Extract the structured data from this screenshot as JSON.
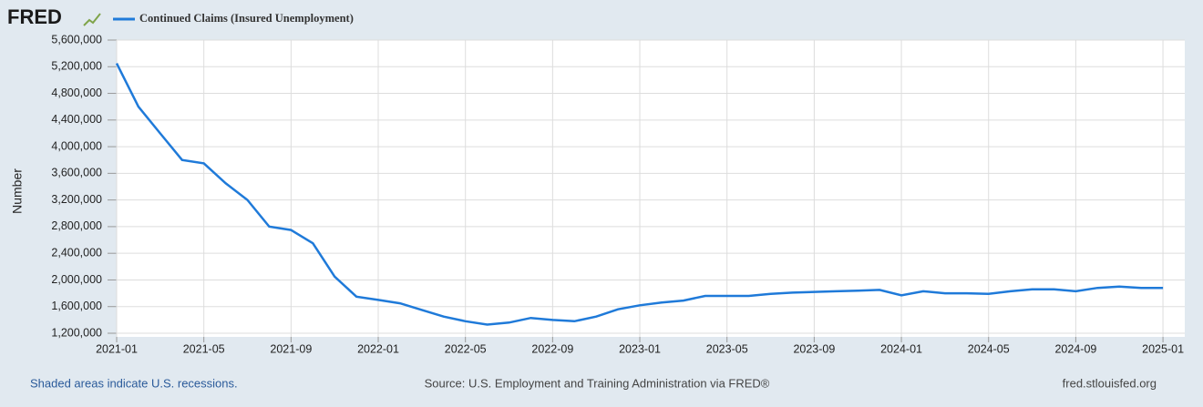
{
  "logo": "FRED",
  "footer": {
    "note": "Shaded areas indicate U.S. recessions.",
    "source": "Source: U.S. Employment and Training Administration via FRED®",
    "site": "fred.stlouisfed.org"
  },
  "chart_data": {
    "type": "line",
    "y_label": "Number",
    "x": [
      "2021-01",
      "2021-02",
      "2021-03",
      "2021-04",
      "2021-05",
      "2021-06",
      "2021-07",
      "2021-08",
      "2021-09",
      "2021-10",
      "2021-11",
      "2021-12",
      "2022-01",
      "2022-02",
      "2022-03",
      "2022-04",
      "2022-05",
      "2022-06",
      "2022-07",
      "2022-08",
      "2022-09",
      "2022-10",
      "2022-11",
      "2022-12",
      "2023-01",
      "2023-02",
      "2023-03",
      "2023-04",
      "2023-05",
      "2023-06",
      "2023-07",
      "2023-08",
      "2023-09",
      "2023-10",
      "2023-11",
      "2023-12",
      "2024-01",
      "2024-02",
      "2024-03",
      "2024-04",
      "2024-05",
      "2024-06",
      "2024-07",
      "2024-08",
      "2024-09",
      "2024-10",
      "2024-11",
      "2024-12",
      "2025-01"
    ],
    "series": [
      {
        "name": "Continued Claims (Insured Unemployment)",
        "color": "#1f7ad9",
        "values": [
          5250000,
          4600000,
          4200000,
          3800000,
          3750000,
          3450000,
          3200000,
          2800000,
          2750000,
          2550000,
          2050000,
          1750000,
          1700000,
          1650000,
          1550000,
          1450000,
          1380000,
          1330000,
          1360000,
          1430000,
          1400000,
          1380000,
          1450000,
          1560000,
          1620000,
          1660000,
          1690000,
          1760000,
          1760000,
          1760000,
          1790000,
          1810000,
          1820000,
          1830000,
          1840000,
          1850000,
          1770000,
          1830000,
          1800000,
          1800000,
          1790000,
          1830000,
          1860000,
          1860000,
          1830000,
          1880000,
          1900000,
          1880000,
          1880000
        ]
      }
    ],
    "xlim": [
      "2021-01",
      "2025-02"
    ],
    "xticks": [
      "2021-01",
      "2021-05",
      "2021-09",
      "2022-01",
      "2022-05",
      "2022-09",
      "2023-01",
      "2023-05",
      "2023-09",
      "2024-01",
      "2024-05",
      "2024-09",
      "2025-01"
    ],
    "ylim": [
      1200000,
      5600000
    ],
    "yticks": [
      {
        "value": 1200000,
        "label": "1,200,000"
      },
      {
        "value": 1600000,
        "label": "1,600,000"
      },
      {
        "value": 2000000,
        "label": "2,000,000"
      },
      {
        "value": 2400000,
        "label": "2,400,000"
      },
      {
        "value": 2800000,
        "label": "2,800,000"
      },
      {
        "value": 3200000,
        "label": "3,200,000"
      },
      {
        "value": 3600000,
        "label": "3,600,000"
      },
      {
        "value": 4000000,
        "label": "4,000,000"
      },
      {
        "value": 4400000,
        "label": "4,400,000"
      },
      {
        "value": 4800000,
        "label": "4,800,000"
      },
      {
        "value": 5200000,
        "label": "5,200,000"
      },
      {
        "value": 5600000,
        "label": "5,600,000"
      }
    ],
    "grid": true,
    "legend": "top-left"
  }
}
